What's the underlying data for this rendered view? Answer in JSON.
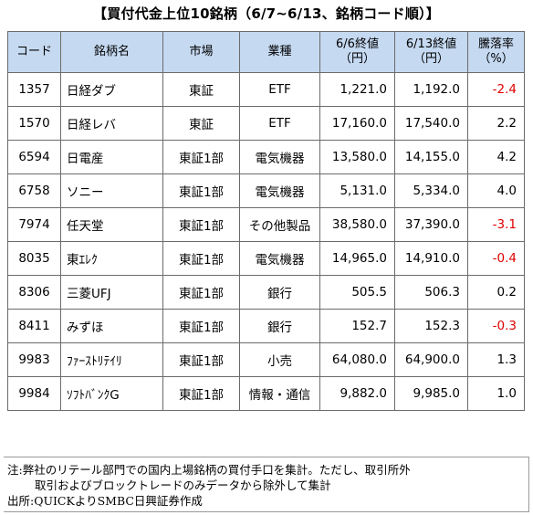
{
  "title": "【買付代金上位10銘柄（6/7~6/13、銘柄コード順）】",
  "headers": [
    "コード",
    "銘柄名",
    "市場",
    "業種",
    "6/6終値\n（円）",
    "6/13終値\n（円）",
    "騰落率\n（%）"
  ],
  "rows": [
    {
      "code": "1357",
      "name": "日経ダブ",
      "market": "東証",
      "sector": "ETF",
      "close_0606": "1,221.0",
      "close_0613": "1,192.0",
      "change": "-2.4",
      "negative": true
    },
    {
      "code": "1570",
      "name": "日経レバ",
      "market": "東証",
      "sector": "ETF",
      "close_0606": "17,160.0",
      "close_0613": "17,540.0",
      "change": "2.2",
      "negative": false
    },
    {
      "code": "6594",
      "name": "日電産",
      "market": "東証1部",
      "sector": "電気機器",
      "close_0606": "13,580.0",
      "close_0613": "14,155.0",
      "change": "4.2",
      "negative": false
    },
    {
      "code": "6758",
      "name": "ソニー",
      "market": "東証1部",
      "sector": "電気機器",
      "close_0606": "5,131.0",
      "close_0613": "5,334.0",
      "change": "4.0",
      "negative": false
    },
    {
      "code": "7974",
      "name": "任天堂",
      "market": "東証1部",
      "sector": "その他製品",
      "close_0606": "38,580.0",
      "close_0613": "37,390.0",
      "change": "-3.1",
      "negative": true
    },
    {
      "code": "8035",
      "name": "東ｴﾚｸ",
      "market": "東証1部",
      "sector": "電気機器",
      "close_0606": "14,965.0",
      "close_0613": "14,910.0",
      "change": "-0.4",
      "negative": true
    },
    {
      "code": "8306",
      "name": "三菱UFJ",
      "market": "東証1部",
      "sector": "銀行",
      "close_0606": "505.5",
      "close_0613": "506.3",
      "change": "0.2",
      "negative": false
    },
    {
      "code": "8411",
      "name": "みずほ",
      "market": "東証1部",
      "sector": "銀行",
      "close_0606": "152.7",
      "close_0613": "152.3",
      "change": "-0.3",
      "negative": true
    },
    {
      "code": "9983",
      "name": "ﾌｧｰｽﾄﾘﾃｲﾘ",
      "market": "東証1部",
      "sector": "小売",
      "close_0606": "64,080.0",
      "close_0613": "64,900.0",
      "change": "1.3",
      "negative": false
    },
    {
      "code": "9984",
      "name": "ｿﾌﾄﾊﾞﾝｸG",
      "market": "東証1部",
      "sector": "情報・通信",
      "close_0606": "9,882.0",
      "close_0613": "9,985.0",
      "change": "1.0",
      "negative": false
    }
  ],
  "notes": {
    "line1": "注:弊社のリテール部門での国内上場銘柄の買付手口を集計。ただし、取引所外",
    "line2": "取引およびブロックトレードのみデータから除外して集計",
    "line3": "出所:QUICKよりSMBC日興証券作成"
  },
  "colors": {
    "header_bg": "#c5d9f1",
    "negative": "#e00000"
  }
}
